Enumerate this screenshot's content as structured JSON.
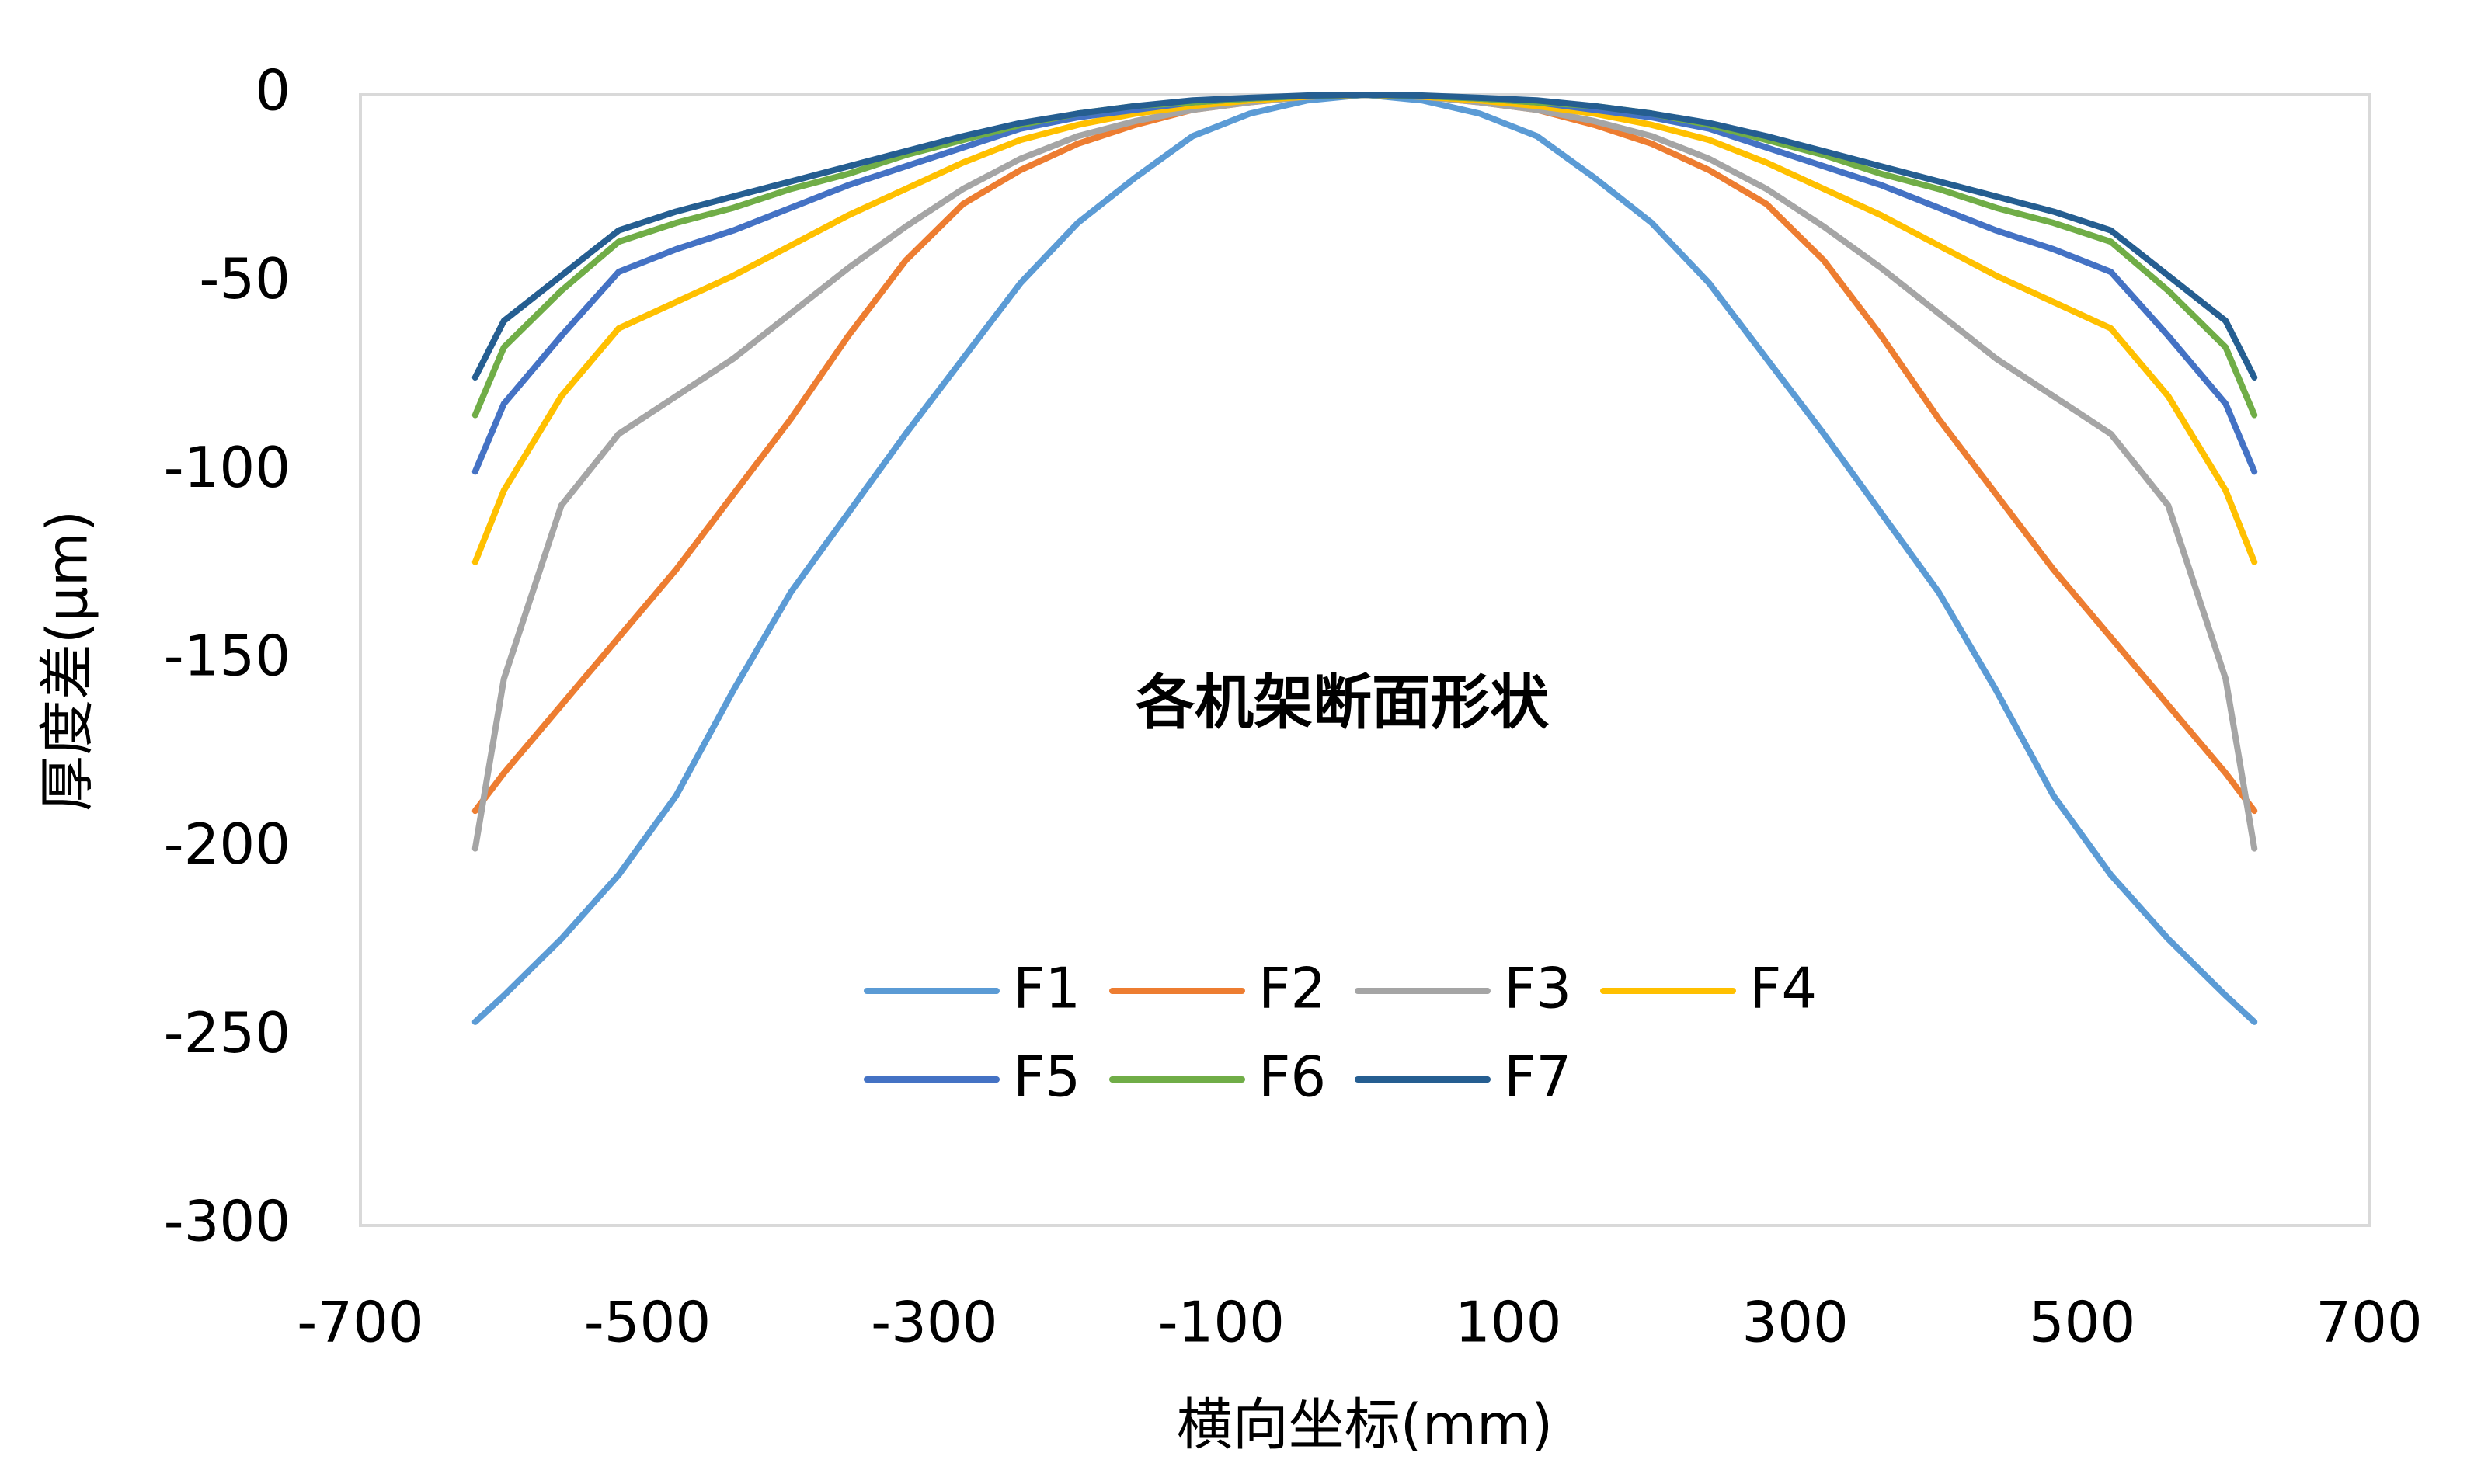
{
  "chart_data": {
    "type": "line",
    "title": "各机架断面形状",
    "x_label": "横向坐标(mm)",
    "y_label": "厚度差(μm)",
    "x": [
      -620,
      -600,
      -560,
      -520,
      -480,
      -440,
      -400,
      -360,
      -320,
      -280,
      -240,
      -200,
      -160,
      -120,
      -80,
      -40,
      0,
      40,
      80,
      120,
      160,
      200,
      240,
      280,
      320,
      360,
      400,
      440,
      480,
      520,
      560,
      600,
      620
    ],
    "series": [
      {
        "name": "F1",
        "color": "#5b9bd5",
        "values": [
          -246,
          -239,
          -224,
          -207,
          -186,
          -158,
          -132,
          -111,
          -90,
          -70,
          -50,
          -34,
          -22,
          -11,
          -5,
          -1.5,
          0,
          -1.5,
          -5,
          -11,
          -22,
          -34,
          -50,
          -70,
          -90,
          -111,
          -132,
          -158,
          -186,
          -207,
          -224,
          -239,
          -246
        ]
      },
      {
        "name": "F2",
        "color": "#ed7d31",
        "values": [
          -190,
          -180,
          -162,
          -144,
          -126,
          -106,
          -86,
          -64,
          -44,
          -29,
          -20,
          -13,
          -8,
          -4,
          -2,
          -0.5,
          0,
          -0.5,
          -2,
          -4,
          -8,
          -13,
          -20,
          -29,
          -44,
          -64,
          -86,
          -106,
          -126,
          -144,
          -162,
          -180,
          -190
        ]
      },
      {
        "name": "F3",
        "color": "#a5a5a5",
        "values": [
          -200,
          -155,
          -109,
          -90,
          -80,
          -70,
          -58,
          -46,
          -35,
          -25,
          -17,
          -11,
          -7,
          -4,
          -2,
          -0.5,
          0,
          -0.5,
          -2,
          -4,
          -7,
          -11,
          -17,
          -25,
          -35,
          -46,
          -58,
          -70,
          -80,
          -90,
          -109,
          -155,
          -200
        ]
      },
      {
        "name": "F4",
        "color": "#ffc000",
        "values": [
          -124,
          -105,
          -80,
          -62,
          -55,
          -48,
          -40,
          -32,
          -25,
          -18,
          -12,
          -8,
          -5,
          -3,
          -1.5,
          -0.5,
          0,
          -0.5,
          -1.5,
          -3,
          -5,
          -8,
          -12,
          -18,
          -25,
          -32,
          -40,
          -48,
          -55,
          -62,
          -80,
          -105,
          -124
        ]
      },
      {
        "name": "F5",
        "color": "#4472c4",
        "values": [
          -100,
          -82,
          -64,
          -47,
          -41,
          -36,
          -30,
          -24,
          -19,
          -14,
          -9,
          -6,
          -4,
          -2,
          -1,
          -0.3,
          0,
          -0.3,
          -1,
          -2,
          -4,
          -6,
          -9,
          -14,
          -19,
          -24,
          -30,
          -36,
          -41,
          -47,
          -64,
          -82,
          -100
        ]
      },
      {
        "name": "F6",
        "color": "#70ad47",
        "values": [
          -85,
          -67,
          -52,
          -39,
          -34,
          -30,
          -25,
          -21,
          -16,
          -12,
          -8,
          -5,
          -3,
          -2,
          -1,
          -0.3,
          0,
          -0.3,
          -1,
          -2,
          -3,
          -5,
          -8,
          -12,
          -16,
          -21,
          -25,
          -30,
          -34,
          -39,
          -52,
          -67,
          -85
        ]
      },
      {
        "name": "F7",
        "color": "#255e91",
        "values": [
          -75,
          -60,
          -48,
          -36,
          -31,
          -27,
          -23,
          -19,
          -15,
          -11,
          -7.5,
          -5,
          -3,
          -1.5,
          -0.8,
          -0.2,
          0,
          -0.2,
          -0.8,
          -1.5,
          -3,
          -5,
          -7.5,
          -11,
          -15,
          -19,
          -23,
          -27,
          -31,
          -36,
          -48,
          -60,
          -75
        ]
      }
    ],
    "xlim": [
      -700,
      700
    ],
    "xticks": [
      -700,
      -500,
      -300,
      -100,
      100,
      300,
      500,
      700
    ],
    "ylim": [
      -300,
      0
    ],
    "yticks": [
      0,
      -50,
      -100,
      -150,
      -200,
      -250,
      -300
    ],
    "grid": false
  }
}
